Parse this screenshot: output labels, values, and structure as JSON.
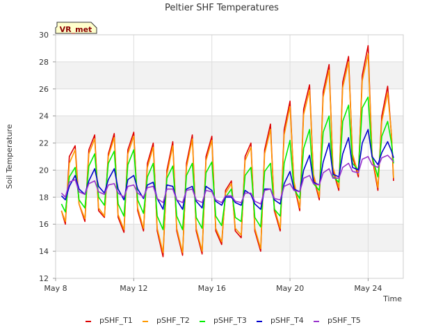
{
  "chart_data": {
    "type": "line",
    "title": "Peltier SHF Temperatures",
    "xlabel": "Time",
    "ylabel": "Soil Temperature",
    "badge": "VR_met",
    "xlim": [
      8.0,
      25.8
    ],
    "ylim": [
      12,
      30
    ],
    "y_ticks": [
      12,
      14,
      16,
      18,
      20,
      22,
      24,
      26,
      28,
      30
    ],
    "x_ticks": [
      {
        "value": 8,
        "label": "May 8"
      },
      {
        "value": 12,
        "label": "May 12"
      },
      {
        "value": 16,
        "label": "May 16"
      },
      {
        "value": 20,
        "label": "May 20"
      },
      {
        "value": 24,
        "label": "May 24"
      }
    ],
    "grid": true,
    "legend_position": "bottom",
    "background_bands": "alternating light gray",
    "series": [
      {
        "name": "pSHF_T1",
        "color": "#dd0000",
        "x": [
          8.3,
          8.5,
          8.7,
          9.0,
          9.2,
          9.5,
          9.7,
          10.0,
          10.2,
          10.5,
          10.7,
          11.0,
          11.2,
          11.5,
          11.7,
          12.0,
          12.2,
          12.5,
          12.7,
          13.0,
          13.2,
          13.5,
          13.7,
          14.0,
          14.2,
          14.5,
          14.7,
          15.0,
          15.2,
          15.5,
          15.7,
          16.0,
          16.2,
          16.5,
          16.7,
          17.0,
          17.2,
          17.5,
          17.7,
          18.0,
          18.2,
          18.5,
          18.7,
          19.0,
          19.2,
          19.5,
          19.7,
          20.0,
          20.2,
          20.5,
          20.7,
          21.0,
          21.2,
          21.5,
          21.7,
          22.0,
          22.2,
          22.5,
          22.7,
          23.0,
          23.2,
          23.5,
          23.7,
          24.0,
          24.2,
          24.5,
          24.7,
          25.0,
          25.2,
          25.3
        ],
        "y": [
          17.0,
          16.0,
          21.0,
          21.8,
          17.5,
          16.2,
          21.5,
          22.6,
          17.0,
          16.5,
          21.2,
          22.7,
          16.5,
          15.4,
          21.5,
          22.8,
          17.0,
          15.5,
          20.5,
          22.0,
          15.5,
          13.6,
          20.0,
          22.1,
          15.5,
          13.7,
          20.5,
          22.6,
          15.5,
          13.8,
          21.0,
          22.5,
          15.5,
          14.5,
          18.5,
          19.2,
          15.5,
          15.0,
          21.0,
          22.0,
          15.5,
          14.0,
          21.5,
          23.4,
          17.0,
          15.5,
          23.0,
          25.1,
          19.0,
          17.0,
          24.5,
          26.3,
          19.5,
          17.8,
          25.8,
          27.8,
          20.0,
          18.5,
          26.5,
          28.4,
          21.0,
          19.5,
          27.0,
          29.2,
          21.0,
          18.5,
          24.0,
          26.2,
          22.5,
          19.2
        ]
      },
      {
        "name": "pSHF_T2",
        "color": "#ff9900",
        "x": [
          8.3,
          8.5,
          8.7,
          9.0,
          9.2,
          9.5,
          9.7,
          10.0,
          10.2,
          10.5,
          10.7,
          11.0,
          11.2,
          11.5,
          11.7,
          12.0,
          12.2,
          12.5,
          12.7,
          13.0,
          13.2,
          13.5,
          13.7,
          14.0,
          14.2,
          14.5,
          14.7,
          15.0,
          15.2,
          15.5,
          15.7,
          16.0,
          16.2,
          16.5,
          16.7,
          17.0,
          17.2,
          17.5,
          17.7,
          18.0,
          18.2,
          18.5,
          18.7,
          19.0,
          19.2,
          19.5,
          19.7,
          20.0,
          20.2,
          20.5,
          20.7,
          21.0,
          21.2,
          21.5,
          21.7,
          22.0,
          22.2,
          22.5,
          22.7,
          23.0,
          23.2,
          23.5,
          23.7,
          24.0,
          24.2,
          24.5,
          24.7,
          25.0,
          25.2,
          25.3
        ],
        "y": [
          17.0,
          16.2,
          20.5,
          21.5,
          17.5,
          16.4,
          21.2,
          22.3,
          17.2,
          16.6,
          21.0,
          22.4,
          16.7,
          15.6,
          21.2,
          22.5,
          17.2,
          15.7,
          20.2,
          21.7,
          15.7,
          13.9,
          19.7,
          21.8,
          15.7,
          13.9,
          20.2,
          22.3,
          15.7,
          14.0,
          20.7,
          22.2,
          15.7,
          14.7,
          18.3,
          19.0,
          15.7,
          15.2,
          20.7,
          21.7,
          15.7,
          14.2,
          21.2,
          23.0,
          17.2,
          15.7,
          22.6,
          24.7,
          19.2,
          17.2,
          24.1,
          25.9,
          19.7,
          18.0,
          25.4,
          27.4,
          20.2,
          18.7,
          26.1,
          28.0,
          21.2,
          19.7,
          26.6,
          28.6,
          21.2,
          18.7,
          23.6,
          25.7,
          22.6,
          19.4
        ]
      },
      {
        "name": "pSHF_T3",
        "color": "#00ee00",
        "x": [
          8.3,
          8.5,
          8.7,
          9.0,
          9.2,
          9.5,
          9.7,
          10.0,
          10.2,
          10.5,
          10.7,
          11.0,
          11.2,
          11.5,
          11.7,
          12.0,
          12.2,
          12.5,
          12.7,
          13.0,
          13.2,
          13.5,
          13.7,
          14.0,
          14.2,
          14.5,
          14.7,
          15.0,
          15.2,
          15.5,
          15.7,
          16.0,
          16.2,
          16.5,
          16.7,
          17.0,
          17.2,
          17.5,
          17.7,
          18.0,
          18.2,
          18.5,
          18.7,
          19.0,
          19.2,
          19.5,
          19.7,
          20.0,
          20.2,
          20.5,
          20.7,
          21.0,
          21.2,
          21.5,
          21.7,
          22.0,
          22.2,
          22.5,
          22.7,
          23.0,
          23.2,
          23.5,
          23.7,
          24.0,
          24.2,
          24.5,
          24.7,
          25.0,
          25.2,
          25.3
        ],
        "y": [
          17.5,
          16.9,
          19.5,
          20.2,
          17.8,
          17.2,
          20.3,
          21.2,
          18.0,
          17.4,
          20.5,
          21.4,
          17.5,
          16.6,
          20.4,
          21.5,
          17.8,
          16.8,
          19.5,
          20.5,
          16.6,
          15.6,
          19.4,
          20.3,
          16.6,
          15.6,
          19.6,
          20.5,
          16.5,
          15.7,
          19.8,
          20.6,
          16.6,
          15.9,
          18.0,
          18.6,
          16.5,
          16.2,
          19.6,
          20.2,
          16.5,
          15.8,
          19.9,
          20.5,
          17.1,
          16.6,
          20.5,
          22.2,
          18.6,
          17.9,
          21.6,
          23.0,
          19.0,
          18.5,
          22.8,
          24.0,
          19.5,
          19.1,
          23.6,
          24.8,
          20.5,
          20.0,
          24.6,
          25.4,
          21.0,
          19.5,
          22.5,
          23.6,
          22.0,
          20.5
        ]
      },
      {
        "name": "pSHF_T4",
        "color": "#0000cc",
        "x": [
          8.3,
          8.5,
          8.7,
          9.0,
          9.2,
          9.5,
          9.7,
          10.0,
          10.2,
          10.5,
          10.7,
          11.0,
          11.2,
          11.5,
          11.7,
          12.0,
          12.2,
          12.5,
          12.7,
          13.0,
          13.2,
          13.5,
          13.7,
          14.0,
          14.2,
          14.5,
          14.7,
          15.0,
          15.2,
          15.5,
          15.7,
          16.0,
          16.2,
          16.5,
          16.7,
          17.0,
          17.2,
          17.5,
          17.7,
          18.0,
          18.2,
          18.5,
          18.7,
          19.0,
          19.2,
          19.5,
          19.7,
          20.0,
          20.2,
          20.5,
          20.7,
          21.0,
          21.2,
          21.5,
          21.7,
          22.0,
          22.2,
          22.5,
          22.7,
          23.0,
          23.2,
          23.5,
          23.7,
          24.0,
          24.2,
          24.5,
          24.7,
          25.0,
          25.2,
          25.3
        ],
        "y": [
          18.1,
          17.8,
          18.8,
          19.6,
          18.6,
          18.2,
          19.2,
          20.1,
          18.8,
          18.3,
          19.3,
          20.1,
          18.6,
          17.8,
          19.3,
          19.6,
          18.6,
          17.9,
          18.9,
          19.1,
          17.9,
          17.1,
          18.9,
          18.8,
          17.8,
          17.1,
          18.6,
          18.8,
          17.7,
          17.2,
          18.8,
          18.5,
          17.7,
          17.4,
          18.0,
          18.0,
          17.6,
          17.4,
          18.5,
          18.2,
          17.5,
          17.1,
          18.6,
          18.6,
          17.8,
          17.5,
          19.0,
          19.9,
          18.6,
          18.4,
          20.0,
          21.1,
          19.1,
          18.9,
          20.6,
          22.0,
          19.7,
          19.5,
          21.2,
          22.4,
          20.2,
          20.0,
          22.0,
          23.0,
          21.0,
          20.4,
          21.3,
          22.1,
          21.4,
          20.9
        ]
      },
      {
        "name": "pSHF_T5",
        "color": "#9933cc",
        "x": [
          8.3,
          8.5,
          8.7,
          9.0,
          9.2,
          9.5,
          9.7,
          10.0,
          10.2,
          10.5,
          10.7,
          11.0,
          11.2,
          11.5,
          11.7,
          12.0,
          12.2,
          12.5,
          12.7,
          13.0,
          13.2,
          13.5,
          13.7,
          14.0,
          14.2,
          14.5,
          14.7,
          15.0,
          15.2,
          15.5,
          15.7,
          16.0,
          16.2,
          16.5,
          16.7,
          17.0,
          17.2,
          17.5,
          17.7,
          18.0,
          18.2,
          18.5,
          18.7,
          19.0,
          19.2,
          19.5,
          19.7,
          20.0,
          20.2,
          20.5,
          20.7,
          21.0,
          21.2,
          21.5,
          21.7,
          22.0,
          22.2,
          22.5,
          22.7,
          23.0,
          23.2,
          23.5,
          23.7,
          24.0,
          24.2,
          24.5,
          24.7,
          25.0,
          25.2,
          25.3
        ],
        "y": [
          18.3,
          18.0,
          19.1,
          19.3,
          18.4,
          18.2,
          19.0,
          19.2,
          18.4,
          18.2,
          18.9,
          19.0,
          18.3,
          18.0,
          18.8,
          18.9,
          18.3,
          18.0,
          18.7,
          18.8,
          17.9,
          17.6,
          18.6,
          18.6,
          17.8,
          17.6,
          18.5,
          18.6,
          17.8,
          17.6,
          18.5,
          18.4,
          17.8,
          17.6,
          18.1,
          18.1,
          17.7,
          17.6,
          18.3,
          18.3,
          17.7,
          17.5,
          18.5,
          18.6,
          17.9,
          17.8,
          18.8,
          19.0,
          18.5,
          18.4,
          19.4,
          19.6,
          19.0,
          18.9,
          19.8,
          20.1,
          19.4,
          19.4,
          20.2,
          20.5,
          19.9,
          19.8,
          20.8,
          21.0,
          20.4,
          20.2,
          20.9,
          21.1,
          20.8,
          20.6
        ]
      }
    ]
  }
}
